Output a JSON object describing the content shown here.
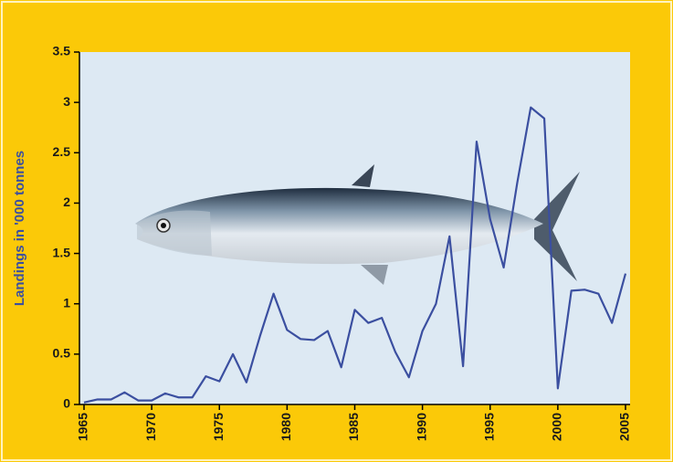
{
  "chart_data": {
    "type": "line",
    "y_label": "Landings in '000 tonnes",
    "x": [
      1965,
      1966,
      1967,
      1968,
      1969,
      1970,
      1971,
      1972,
      1973,
      1974,
      1975,
      1976,
      1977,
      1978,
      1979,
      1980,
      1981,
      1982,
      1983,
      1984,
      1985,
      1986,
      1987,
      1988,
      1989,
      1990,
      1991,
      1992,
      1993,
      1994,
      1995,
      1996,
      1997,
      1998,
      1999,
      2000,
      2001,
      2002,
      2003,
      2004,
      2005
    ],
    "values": [
      0.02,
      0.05,
      0.05,
      0.12,
      0.04,
      0.04,
      0.11,
      0.07,
      0.07,
      0.28,
      0.23,
      0.5,
      0.22,
      0.68,
      1.1,
      0.74,
      0.65,
      0.64,
      0.73,
      0.37,
      0.94,
      0.81,
      0.86,
      0.52,
      0.27,
      0.73,
      1.0,
      1.67,
      0.38,
      2.61,
      1.84,
      1.36,
      2.2,
      2.95,
      2.84,
      0.16,
      1.13,
      1.14,
      1.1,
      0.81,
      1.3
    ],
    "color": "#3b4fa0",
    "xlim": [
      1965,
      2005
    ],
    "xticks": [
      1965,
      1970,
      1975,
      1980,
      1985,
      1990,
      1995,
      2000,
      2005
    ],
    "ylim": [
      0,
      3.5
    ],
    "yticks": [
      0,
      0.5,
      1,
      1.5,
      2,
      2.5,
      3,
      3.5
    ]
  }
}
